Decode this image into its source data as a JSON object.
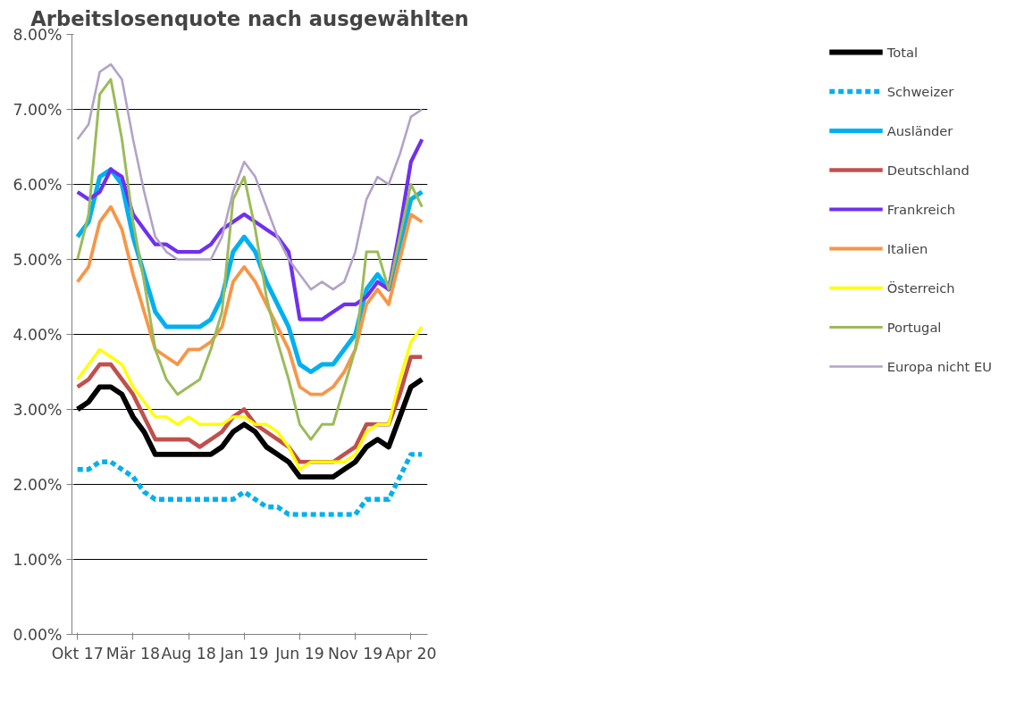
{
  "chart_data": {
    "type": "line",
    "title": "Arbeitslosenquote nach ausgewählten",
    "categories": [
      "Okt 17",
      null,
      null,
      null,
      null,
      "Mär 18",
      null,
      null,
      null,
      null,
      "Aug 18",
      null,
      null,
      null,
      null,
      "Jan 19",
      null,
      null,
      null,
      null,
      "Jun 19",
      null,
      null,
      null,
      null,
      "Nov 19",
      null,
      null,
      null,
      null,
      "Apr 20",
      null
    ],
    "ylim": [
      0,
      8
    ],
    "yticks": [
      {
        "value": 0,
        "label": "0.00%"
      },
      {
        "value": 1,
        "label": "1.00%"
      },
      {
        "value": 2,
        "label": "2.00%"
      },
      {
        "value": 3,
        "label": "3.00%"
      },
      {
        "value": 4,
        "label": "4.00%"
      },
      {
        "value": 5,
        "label": "5.00%"
      },
      {
        "value": 6,
        "label": "6.00%"
      },
      {
        "value": 7,
        "label": "7.00%"
      },
      {
        "value": 8,
        "label": "8.00%"
      }
    ],
    "grid": "y",
    "legend": "right",
    "marker": "none",
    "series": [
      {
        "name": "Total",
        "color": "#000000",
        "values": [
          3.0,
          3.1,
          3.3,
          3.3,
          3.2,
          2.9,
          2.7,
          2.4,
          2.4,
          2.4,
          2.4,
          2.4,
          2.4,
          2.5,
          2.7,
          2.8,
          2.7,
          2.5,
          2.4,
          2.3,
          2.1,
          2.1,
          2.1,
          2.1,
          2.2,
          2.3,
          2.5,
          2.6,
          2.5,
          2.9,
          3.3,
          3.4
        ]
      },
      {
        "name": "Schweizer",
        "color": "#00b0f0",
        "line_style": "dashed",
        "values": [
          2.2,
          2.2,
          2.3,
          2.3,
          2.2,
          2.1,
          1.9,
          1.8,
          1.8,
          1.8,
          1.8,
          1.8,
          1.8,
          1.8,
          1.8,
          1.9,
          1.8,
          1.7,
          1.7,
          1.6,
          1.6,
          1.6,
          1.6,
          1.6,
          1.6,
          1.6,
          1.8,
          1.8,
          1.8,
          2.1,
          2.4,
          2.4
        ]
      },
      {
        "name": "Ausländer",
        "color": "#00b0f0",
        "values": [
          5.3,
          5.5,
          6.1,
          6.2,
          6.0,
          5.3,
          4.8,
          4.3,
          4.1,
          4.1,
          4.1,
          4.1,
          4.2,
          4.5,
          5.1,
          5.3,
          5.1,
          4.7,
          4.4,
          4.1,
          3.6,
          3.5,
          3.6,
          3.6,
          3.8,
          4.0,
          4.6,
          4.8,
          4.6,
          5.2,
          5.8,
          5.9
        ]
      },
      {
        "name": "Deutschland",
        "color": "#c0504d",
        "values": [
          3.3,
          3.4,
          3.6,
          3.6,
          3.4,
          3.2,
          2.9,
          2.6,
          2.6,
          2.6,
          2.6,
          2.5,
          2.6,
          2.7,
          2.9,
          3.0,
          2.8,
          2.7,
          2.6,
          2.5,
          2.3,
          2.3,
          2.3,
          2.3,
          2.4,
          2.5,
          2.8,
          2.8,
          2.8,
          3.2,
          3.7,
          3.7
        ]
      },
      {
        "name": "Frankreich",
        "color": "#7030f0",
        "values": [
          5.9,
          5.8,
          5.9,
          6.2,
          6.1,
          5.6,
          5.4,
          5.2,
          5.2,
          5.1,
          5.1,
          5.1,
          5.2,
          5.4,
          5.5,
          5.6,
          5.5,
          5.4,
          5.3,
          5.1,
          4.2,
          4.2,
          4.2,
          4.3,
          4.4,
          4.4,
          4.5,
          4.7,
          4.6,
          5.4,
          6.3,
          6.6
        ]
      },
      {
        "name": "Italien",
        "color": "#f79646",
        "values": [
          4.7,
          4.9,
          5.5,
          5.7,
          5.4,
          4.8,
          4.3,
          3.8,
          3.7,
          3.6,
          3.8,
          3.8,
          3.9,
          4.1,
          4.7,
          4.9,
          4.7,
          4.4,
          4.1,
          3.8,
          3.3,
          3.2,
          3.2,
          3.3,
          3.5,
          3.8,
          4.4,
          4.6,
          4.4,
          5.0,
          5.6,
          5.5
        ]
      },
      {
        "name": "Österreich",
        "color": "#ffff00",
        "values": [
          3.4,
          3.6,
          3.8,
          3.7,
          3.6,
          3.3,
          3.1,
          2.9,
          2.9,
          2.8,
          2.9,
          2.8,
          2.8,
          2.8,
          2.9,
          2.9,
          2.8,
          2.8,
          2.7,
          2.5,
          2.2,
          2.3,
          2.3,
          2.3,
          2.3,
          2.4,
          2.7,
          2.8,
          2.8,
          3.4,
          3.9,
          4.1
        ]
      },
      {
        "name": "Portugal",
        "color": "#9bbb59",
        "values": [
          5.0,
          5.6,
          7.2,
          7.4,
          6.6,
          5.5,
          4.7,
          3.8,
          3.4,
          3.2,
          3.3,
          3.4,
          3.8,
          4.3,
          5.8,
          6.1,
          5.4,
          4.5,
          3.9,
          3.4,
          2.8,
          2.6,
          2.8,
          2.8,
          3.3,
          3.8,
          5.1,
          5.1,
          4.6,
          5.3,
          6.0,
          5.7
        ]
      },
      {
        "name": "Europa nicht EU",
        "color": "#b3a2c7",
        "values": [
          6.6,
          6.8,
          7.5,
          7.6,
          7.4,
          6.6,
          5.9,
          5.3,
          5.1,
          5.0,
          5.0,
          5.0,
          5.0,
          5.3,
          5.9,
          6.3,
          6.1,
          5.7,
          5.3,
          5.0,
          4.8,
          4.6,
          4.7,
          4.6,
          4.7,
          5.1,
          5.8,
          6.1,
          6.0,
          6.4,
          6.9,
          7.0
        ]
      }
    ]
  }
}
